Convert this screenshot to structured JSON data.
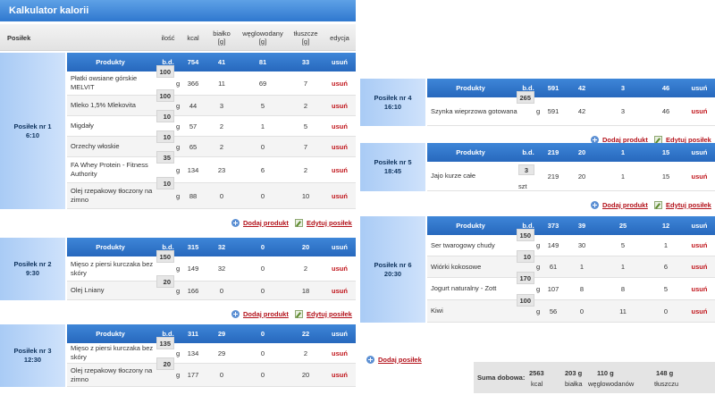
{
  "app": {
    "title": "Kalkulator kalorii"
  },
  "columns": {
    "posilek": "Posiłek",
    "ilosc": "ilość",
    "kcal": "kcal",
    "bialko": "białko",
    "bialko_unit": "[g]",
    "weglowodany": "węglowodany",
    "weglowodany_unit": "[g]",
    "tluszcze": "tłuszcze",
    "tluszcze_unit": "[g]",
    "edycja": "edycja"
  },
  "labels": {
    "produkty": "Produkty",
    "bd": "b.d.",
    "usun": "usuń",
    "dodaj_produkt": "Dodaj produkt",
    "edytuj_posilek": "Edytuj posiłek",
    "dodaj_posilek": "Dodaj posiłek",
    "unit_g": "g",
    "unit_szt": "szt"
  },
  "meals": [
    {
      "name": "Posiłek nr 1",
      "time": "6:10",
      "totals": {
        "kcal": "754",
        "bialko": "41",
        "weglowodany": "81",
        "tluszcze": "33"
      },
      "products": [
        {
          "name": "Płatki owsiane górskie MELVIT",
          "qty": "100",
          "unit": "g",
          "kcal": "366",
          "bialko": "11",
          "weglowodany": "69",
          "tluszcze": "7"
        },
        {
          "name": "Mleko 1,5% Mlekovita",
          "qty": "100",
          "unit": "g",
          "kcal": "44",
          "bialko": "3",
          "weglowodany": "5",
          "tluszcze": "2"
        },
        {
          "name": "Migdały",
          "qty": "10",
          "unit": "g",
          "kcal": "57",
          "bialko": "2",
          "weglowodany": "1",
          "tluszcze": "5"
        },
        {
          "name": "Orzechy włoskie",
          "qty": "10",
          "unit": "g",
          "kcal": "65",
          "bialko": "2",
          "weglowodany": "0",
          "tluszcze": "7"
        },
        {
          "name": "FA Whey Protein - Fitness Authority",
          "qty": "35",
          "unit": "g",
          "kcal": "134",
          "bialko": "23",
          "weglowodany": "6",
          "tluszcze": "2"
        },
        {
          "name": "Olej rzepakowy tłoczony na zimno",
          "qty": "10",
          "unit": "g",
          "kcal": "88",
          "bialko": "0",
          "weglowodany": "0",
          "tluszcze": "10"
        }
      ]
    },
    {
      "name": "Posiłek nr 2",
      "time": "9:30",
      "totals": {
        "kcal": "315",
        "bialko": "32",
        "weglowodany": "0",
        "tluszcze": "20"
      },
      "products": [
        {
          "name": "Mięso z piersi kurczaka bez skóry",
          "qty": "150",
          "unit": "g",
          "kcal": "149",
          "bialko": "32",
          "weglowodany": "0",
          "tluszcze": "2"
        },
        {
          "name": "Olej Lniany",
          "qty": "20",
          "unit": "g",
          "kcal": "166",
          "bialko": "0",
          "weglowodany": "0",
          "tluszcze": "18"
        }
      ]
    },
    {
      "name": "Posiłek nr 3",
      "time": "12:30",
      "totals": {
        "kcal": "311",
        "bialko": "29",
        "weglowodany": "0",
        "tluszcze": "22"
      },
      "products": [
        {
          "name": "Mięso z piersi kurczaka bez skóry",
          "qty": "135",
          "unit": "g",
          "kcal": "134",
          "bialko": "29",
          "weglowodany": "0",
          "tluszcze": "2"
        },
        {
          "name": "Olej rzepakowy tłoczony na zimno",
          "qty": "20",
          "unit": "g",
          "kcal": "177",
          "bialko": "0",
          "weglowodany": "0",
          "tluszcze": "20"
        }
      ]
    },
    {
      "name": "Posiłek nr 4",
      "time": "16:10",
      "totals": {
        "kcal": "591",
        "bialko": "42",
        "weglowodany": "3",
        "tluszcze": "46"
      },
      "products": [
        {
          "name": "Szynka wieprzowa gotowana",
          "qty": "265",
          "unit": "g",
          "kcal": "591",
          "bialko": "42",
          "weglowodany": "3",
          "tluszcze": "46"
        }
      ]
    },
    {
      "name": "Posiłek nr 5",
      "time": "18:45",
      "totals": {
        "kcal": "219",
        "bialko": "20",
        "weglowodany": "1",
        "tluszcze": "15"
      },
      "products": [
        {
          "name": "Jajo kurze całe",
          "qty": "3",
          "unit": "szt",
          "kcal": "219",
          "bialko": "20",
          "weglowodany": "1",
          "tluszcze": "15"
        }
      ]
    },
    {
      "name": "Posiłek nr 6",
      "time": "20:30",
      "totals": {
        "kcal": "373",
        "bialko": "39",
        "weglowodany": "25",
        "tluszcze": "12"
      },
      "products": [
        {
          "name": "Ser twarogowy chudy",
          "qty": "150",
          "unit": "g",
          "kcal": "149",
          "bialko": "30",
          "weglowodany": "5",
          "tluszcze": "1"
        },
        {
          "name": "Wiórki kokosowe",
          "qty": "10",
          "unit": "g",
          "kcal": "61",
          "bialko": "1",
          "weglowodany": "1",
          "tluszcze": "6"
        },
        {
          "name": "Jogurt naturalny - Zott",
          "qty": "170",
          "unit": "g",
          "kcal": "107",
          "bialko": "8",
          "weglowodany": "8",
          "tluszcze": "5"
        },
        {
          "name": "Kiwi",
          "qty": "100",
          "unit": "g",
          "kcal": "56",
          "bialko": "0",
          "weglowodany": "11",
          "tluszcze": "0"
        }
      ]
    }
  ],
  "summary": {
    "label": "Suma dobowa:",
    "kcal_value": "2563",
    "kcal_unit": "kcal",
    "bialko_value": "203 g",
    "bialko_unit": "białka",
    "weglowodany_value": "110 g",
    "weglowodany_unit": "węglowodanów",
    "tluszcze_value": "148 g",
    "tluszcze_unit": "tłuszczu"
  }
}
